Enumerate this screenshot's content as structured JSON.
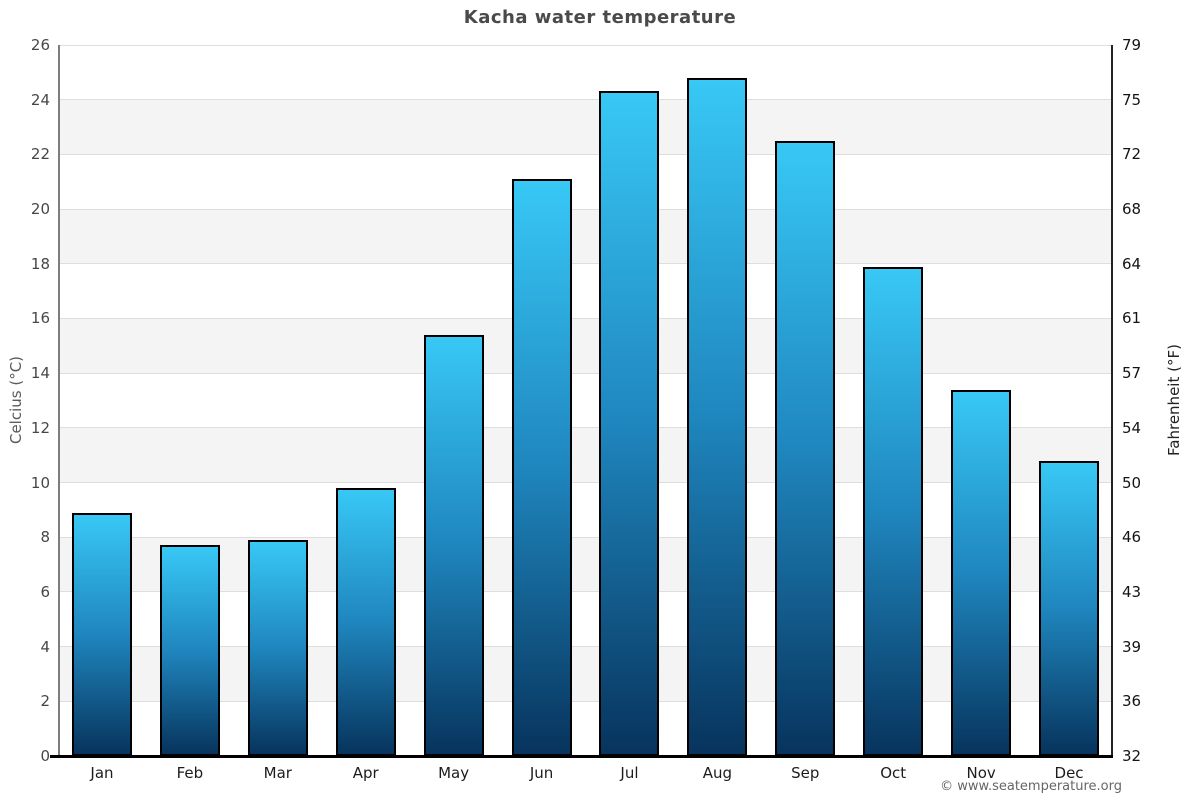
{
  "title": "Kacha water temperature",
  "footer": {
    "copyright": "© www.seatemperature.org"
  },
  "chart_data": {
    "type": "bar",
    "title": "Kacha water temperature",
    "categories": [
      "Jan",
      "Feb",
      "Mar",
      "Apr",
      "May",
      "Jun",
      "Jul",
      "Aug",
      "Sep",
      "Oct",
      "Nov",
      "Dec"
    ],
    "series": [
      {
        "name": "Water temperature (°C)",
        "values": [
          8.9,
          7.7,
          7.9,
          9.8,
          15.4,
          21.1,
          24.3,
          24.8,
          22.5,
          17.9,
          13.4,
          10.8
        ]
      }
    ],
    "ylabel_left": "Celcius (°C)",
    "ylabel_right": "Fahrenheit (°F)",
    "ylim_c": [
      0,
      26
    ],
    "yticks_celsius": [
      26,
      24,
      22,
      20,
      18,
      16,
      14,
      12,
      10,
      8,
      6,
      4,
      2,
      0
    ],
    "yticks_fahrenheit": [
      79,
      75,
      72,
      68,
      64,
      61,
      57,
      54,
      50,
      46,
      43,
      39,
      36,
      32
    ],
    "grid": "alternating horizontal bands, light gridline at each tick",
    "legend_position": "none",
    "colors": {
      "bar_gradient_top": "#38c8f6",
      "bar_gradient_mid": "#1f86be",
      "bar_gradient_bottom": "#07345d",
      "bar_border": "#000000",
      "band_gray": "#f4f4f4",
      "band_white": "#ffffff",
      "gridline": "#dedede",
      "title_text": "#4a4a4a"
    }
  }
}
